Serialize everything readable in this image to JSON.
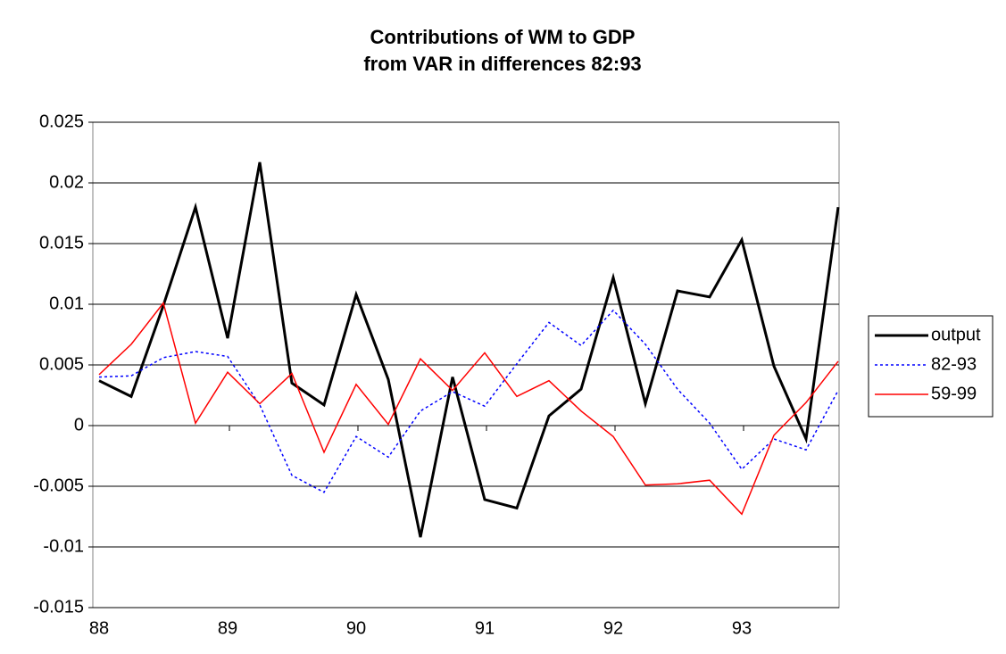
{
  "chart_data": {
    "type": "line",
    "title": [
      "Contributions of WM to GDP",
      "from VAR in differences 82:93"
    ],
    "categories": [
      "88",
      null,
      null,
      null,
      "89",
      null,
      null,
      null,
      "90",
      null,
      null,
      null,
      "91",
      null,
      null,
      null,
      "92",
      null,
      null,
      null,
      "93",
      null,
      null,
      null
    ],
    "series": [
      {
        "name": "output",
        "color": "#000000",
        "line_style": "solid",
        "line_width": 3,
        "values": [
          0.0037,
          0.0024,
          0.0099,
          0.018,
          0.0072,
          0.0217,
          0.0035,
          0.0017,
          0.0108,
          0.0038,
          -0.0092,
          0.004,
          -0.0061,
          -0.0068,
          0.0008,
          0.003,
          0.0122,
          0.0018,
          0.0111,
          0.0106,
          0.0153,
          0.0049,
          -0.0011,
          0.018
        ]
      },
      {
        "name": "82-93",
        "color": "#0000ff",
        "line_style": "dotted",
        "line_width": 1.5,
        "values": [
          0.004,
          0.0041,
          0.0056,
          0.0061,
          0.0057,
          0.0017,
          -0.0041,
          -0.0055,
          -0.0009,
          -0.0026,
          0.0012,
          0.0028,
          0.0016,
          0.0051,
          0.0085,
          0.0066,
          0.0095,
          0.0067,
          0.003,
          0.0002,
          -0.0036,
          -0.0011,
          -0.002,
          0.0029
        ]
      },
      {
        "name": "59-99",
        "color": "#ff0000",
        "line_style": "solid",
        "line_width": 1.5,
        "values": [
          0.0042,
          0.0067,
          0.0101,
          0.0002,
          0.0044,
          0.0018,
          0.0043,
          -0.0022,
          0.0034,
          0.0001,
          0.0055,
          0.0029,
          0.006,
          0.0024,
          0.0037,
          0.0012,
          -0.0009,
          -0.0049,
          -0.0048,
          -0.0045,
          -0.0073,
          -0.0008,
          0.0019,
          0.0053
        ]
      }
    ],
    "ylim": [
      -0.015,
      0.025
    ],
    "yticks": [
      -0.015,
      -0.01,
      -0.005,
      0,
      0.005,
      0.01,
      0.015,
      0.02,
      0.025
    ],
    "grid": true,
    "legend": "right"
  }
}
